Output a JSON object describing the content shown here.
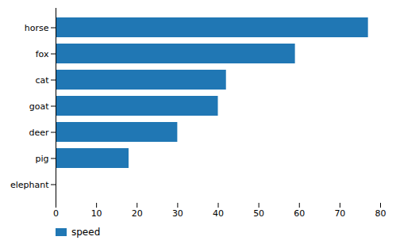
{
  "chart_data": {
    "type": "bar",
    "orientation": "horizontal",
    "categories": [
      "elephant",
      "pig",
      "deer",
      "goat",
      "cat",
      "fox",
      "horse"
    ],
    "series": [
      {
        "name": "speed",
        "color": "#2077b4",
        "values": [
          0,
          18,
          30,
          40,
          42,
          59,
          77
        ]
      }
    ],
    "xlim": [
      0,
      80
    ],
    "xticks": [
      0,
      10,
      20,
      30,
      40,
      50,
      60,
      70,
      80
    ],
    "grid": false,
    "legend": "lower left"
  }
}
